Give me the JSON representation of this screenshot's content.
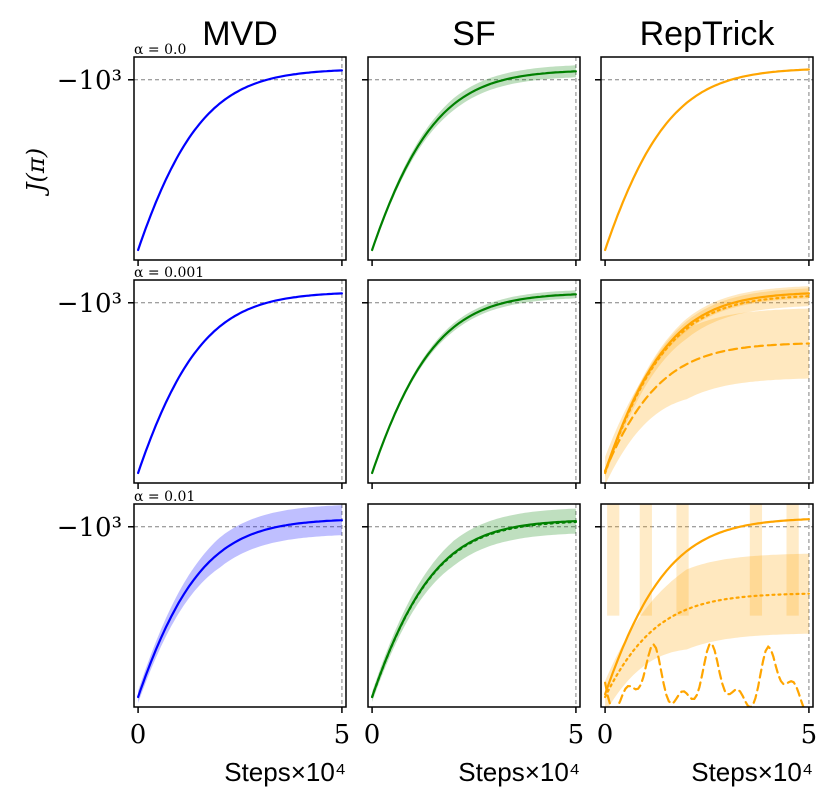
{
  "chart_data": {
    "type": "line",
    "layout": "grid",
    "columns": [
      "MVD",
      "SF",
      "RepTrick"
    ],
    "rows": [
      {
        "label": "α = 0.0",
        "alpha": 0.0
      },
      {
        "label": "α = 0.001",
        "alpha": 0.001
      },
      {
        "label": "α = 0.01",
        "alpha": 0.01
      }
    ],
    "ylabel": "J(π)",
    "xlabel": "Steps",
    "x_multiplier": "×10⁴",
    "xlim": [
      -0.1,
      5.1
    ],
    "xticks": [
      "0",
      "5"
    ],
    "ytick": {
      "value": -1000,
      "label": "−10³"
    },
    "reference_lines": {
      "y": -1000,
      "x": 5
    },
    "colors": {
      "MVD": "#0000ff",
      "SF": "#008000",
      "RepTrick": "#ffa500"
    },
    "series_note": "values are J(π) in data units (symlog); x in steps ×10⁴",
    "panels": [
      {
        "row": 0,
        "col": 0,
        "series": [
          {
            "style": "solid",
            "start": -2600,
            "end": -940,
            "band": 0
          }
        ]
      },
      {
        "row": 0,
        "col": 1,
        "series": [
          {
            "style": "solid",
            "start": -2600,
            "end": -945,
            "band": 12
          }
        ]
      },
      {
        "row": 0,
        "col": 2,
        "series": [
          {
            "style": "solid",
            "start": -2600,
            "end": -935,
            "band": 0
          }
        ]
      },
      {
        "row": 1,
        "col": 0,
        "series": [
          {
            "style": "solid",
            "start": -2600,
            "end": -940,
            "band": 0
          }
        ]
      },
      {
        "row": 1,
        "col": 1,
        "series": [
          {
            "style": "solid",
            "start": -2600,
            "end": -945,
            "band": 8
          }
        ]
      },
      {
        "row": 1,
        "col": 2,
        "series": [
          {
            "style": "solid",
            "start": -2580,
            "end": -940,
            "band": 10
          },
          {
            "style": "dotted",
            "start": -2600,
            "end": -955,
            "band": 20
          },
          {
            "style": "dashed",
            "start": -2570,
            "end": -1250,
            "band": 70
          }
        ]
      },
      {
        "row": 2,
        "col": 0,
        "series": [
          {
            "style": "solid",
            "start": -2600,
            "end": -955,
            "band": 30
          }
        ]
      },
      {
        "row": 2,
        "col": 1,
        "series": [
          {
            "style": "solid",
            "start": -2600,
            "end": -960,
            "band": 25
          },
          {
            "style": "dotted",
            "start": -2600,
            "end": -965,
            "band": 0
          }
        ]
      },
      {
        "row": 2,
        "col": 2,
        "series": [
          {
            "style": "solid",
            "start": -2560,
            "end": -950,
            "band": 0
          },
          {
            "style": "dotted",
            "start": -2600,
            "end": -1450,
            "band": 80
          },
          {
            "style": "dashed",
            "start": -2600,
            "end": -2550,
            "band": 0,
            "erratic": true
          }
        ]
      }
    ]
  }
}
